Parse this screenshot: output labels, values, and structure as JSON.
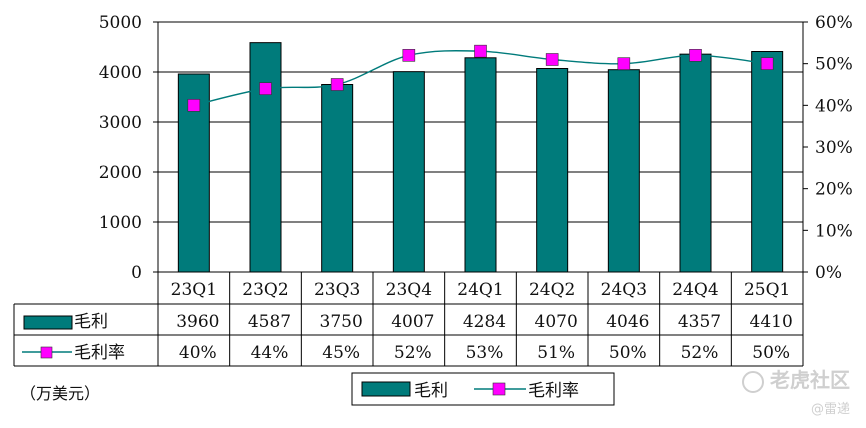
{
  "chart_data": {
    "type": "bar",
    "categories": [
      "23Q1",
      "23Q2",
      "23Q3",
      "23Q4",
      "24Q1",
      "24Q2",
      "24Q3",
      "24Q4",
      "25Q1"
    ],
    "series": [
      {
        "name": "毛利",
        "type": "bar",
        "axis": "left",
        "color": "#007b7b",
        "values": [
          3960,
          4587,
          3750,
          4007,
          4284,
          4070,
          4046,
          4357,
          4410
        ]
      },
      {
        "name": "毛利率",
        "type": "line",
        "axis": "right",
        "color": "#ff00ff",
        "values": [
          40,
          44,
          45,
          52,
          53,
          51,
          50,
          52,
          50
        ]
      }
    ],
    "ylim": [
      0,
      5000
    ],
    "y_ticks": [
      "0",
      "1000",
      "2000",
      "3000",
      "4000",
      "5000"
    ],
    "y2lim": [
      0,
      60
    ],
    "y2_ticks": [
      "0%",
      "10%",
      "20%",
      "30%",
      "40%",
      "50%",
      "60%"
    ],
    "table_row_labels": [
      "毛利",
      "毛利率"
    ],
    "table_values_row1": [
      "3960",
      "4587",
      "3750",
      "4007",
      "4284",
      "4070",
      "4046",
      "4357",
      "4410"
    ],
    "table_values_row2": [
      "40%",
      "44%",
      "45%",
      "52%",
      "53%",
      "51%",
      "50%",
      "52%",
      "50%"
    ],
    "legend": [
      "毛利",
      "毛利率"
    ],
    "legend_position": "bottom",
    "grid": true
  },
  "unit_label": "（万美元）",
  "watermark": {
    "brand": "老虎社区",
    "author": "@雷递"
  },
  "colors": {
    "bar": "#007b7b",
    "marker": "#ff00ff",
    "line": "#007b7b"
  }
}
